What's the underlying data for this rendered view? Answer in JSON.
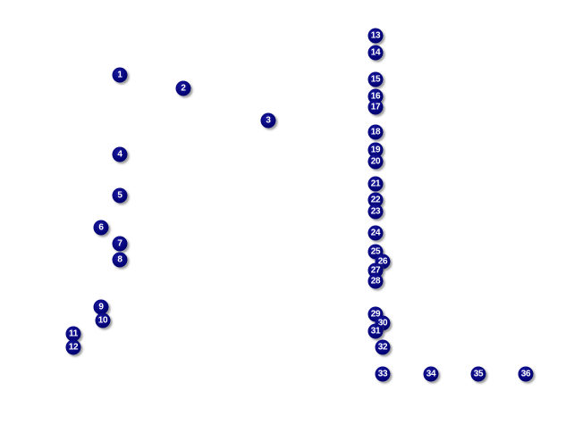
{
  "markers": [
    "1",
    "2",
    "3",
    "4",
    "5",
    "6",
    "7",
    "8",
    "9",
    "10",
    "11",
    "12",
    "13",
    "14",
    "15",
    "16",
    "17",
    "18",
    "19",
    "20",
    "21",
    "22",
    "23",
    "24",
    "25",
    "26",
    "27",
    "28",
    "29",
    "30",
    "31",
    "32",
    "33",
    "34",
    "35",
    "36"
  ],
  "colors": {
    "marker_fill": "#000080",
    "marker_text": "#ffffff",
    "background": "#ffffff"
  }
}
